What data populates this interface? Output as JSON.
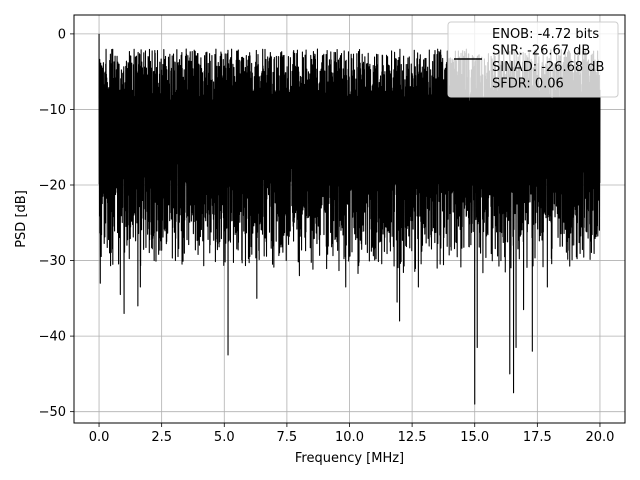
{
  "chart_data": {
    "type": "line",
    "xlabel": "Frequency [MHz]",
    "ylabel": "PSD [dB]",
    "xlim": [
      -1.0,
      21.0
    ],
    "ylim": [
      -51.5,
      2.5
    ],
    "xticks": [
      0.0,
      2.5,
      5.0,
      7.5,
      10.0,
      12.5,
      15.0,
      17.5,
      20.0
    ],
    "xtick_labels": [
      "0.0",
      "2.5",
      "5.0",
      "7.5",
      "10.0",
      "12.5",
      "15.0",
      "17.5",
      "20.0"
    ],
    "yticks": [
      0,
      -10,
      -20,
      -30,
      -40,
      -50
    ],
    "ytick_labels": [
      "0",
      "−10",
      "−20",
      "−30",
      "−40",
      "−50"
    ],
    "grid": true,
    "legend_position": "top-right",
    "legend": {
      "lines": [
        "ENOB: -4.72 bits",
        "SNR: -26.67 dB",
        "SINAD: -26.68 dB",
        "SFDR: 0.06"
      ]
    },
    "series": [
      {
        "color": "#000000",
        "x_range": [
          0.0,
          20.0
        ],
        "typical_band": [
          -23,
          -5
        ],
        "max": 0.0,
        "deep_dips": [
          {
            "x": 0.05,
            "y": -33
          },
          {
            "x": 0.55,
            "y": -30.5
          },
          {
            "x": 0.85,
            "y": -34.5
          },
          {
            "x": 1.0,
            "y": -37
          },
          {
            "x": 1.55,
            "y": -36
          },
          {
            "x": 1.65,
            "y": -33.5
          },
          {
            "x": 2.2,
            "y": -30
          },
          {
            "x": 3.05,
            "y": -30
          },
          {
            "x": 5.15,
            "y": -42.5
          },
          {
            "x": 6.3,
            "y": -35
          },
          {
            "x": 8.0,
            "y": -32
          },
          {
            "x": 9.85,
            "y": -33.5
          },
          {
            "x": 11.9,
            "y": -35.5
          },
          {
            "x": 12.0,
            "y": -38
          },
          {
            "x": 12.75,
            "y": -33.5
          },
          {
            "x": 14.3,
            "y": -29.5
          },
          {
            "x": 15.0,
            "y": -49
          },
          {
            "x": 15.1,
            "y": -41.5
          },
          {
            "x": 16.4,
            "y": -45
          },
          {
            "x": 16.55,
            "y": -47.5
          },
          {
            "x": 16.65,
            "y": -41.5
          },
          {
            "x": 16.95,
            "y": -36.5
          },
          {
            "x": 17.3,
            "y": -42
          },
          {
            "x": 17.9,
            "y": -33.5
          }
        ]
      }
    ]
  }
}
